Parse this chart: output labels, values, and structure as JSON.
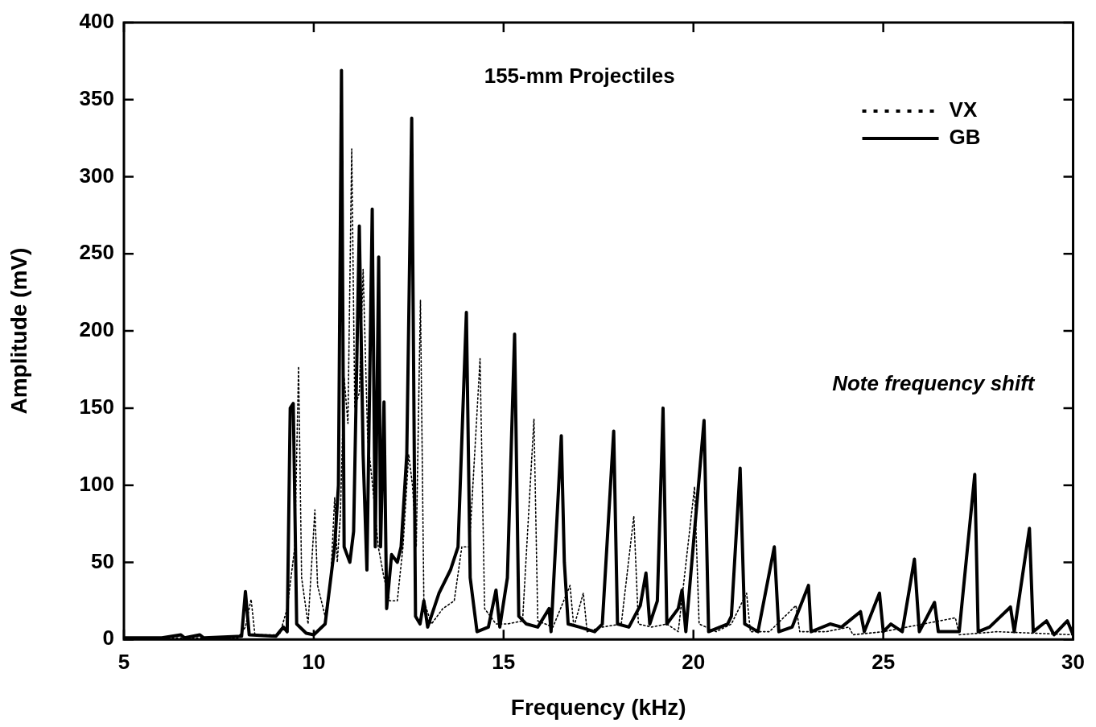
{
  "chart_data": {
    "type": "line",
    "title": "155-mm Projectiles",
    "xlabel": "Frequency (kHz)",
    "ylabel": "Amplitude (mV)",
    "annotations": [
      "Note frequency shift"
    ],
    "xlim": [
      5,
      30
    ],
    "xticks": [
      5,
      10,
      15,
      20,
      25,
      30
    ],
    "ylim": [
      0,
      400
    ],
    "yticks": [
      0,
      50,
      100,
      150,
      200,
      250,
      300,
      350,
      400
    ],
    "legend": "top right",
    "marker": "none",
    "series": [
      {
        "name": "VX",
        "color": "#000000",
        "line_style": "dotted",
        "x": [
          5,
          8.0,
          8.2,
          8.35,
          8.45,
          9.1,
          9.3,
          9.5,
          9.6,
          9.68,
          9.85,
          10.03,
          10.1,
          10.3,
          10.45,
          10.55,
          10.62,
          10.7,
          10.8,
          10.9,
          11.0,
          11.08,
          11.2,
          11.3,
          11.42,
          11.55,
          11.7,
          11.85,
          12.0,
          12.2,
          12.35,
          12.5,
          12.6,
          12.7,
          12.81,
          12.9,
          13.1,
          13.4,
          13.7,
          13.9,
          14.1,
          14.38,
          14.5,
          14.8,
          15.1,
          15.5,
          15.8,
          15.9,
          16.3,
          16.75,
          16.85,
          17.1,
          17.2,
          17.6,
          18.1,
          18.43,
          18.55,
          18.9,
          19.3,
          19.6,
          20.03,
          20.15,
          20.6,
          21.0,
          21.4,
          21.5,
          22.0,
          22.7,
          22.8,
          23.5,
          24.1,
          24.2,
          25.0,
          26.9,
          27.0,
          28.0,
          30
        ],
        "values": [
          1,
          1,
          8,
          26,
          3,
          3,
          20,
          60,
          177,
          40,
          10,
          84,
          35,
          15,
          40,
          92,
          50,
          80,
          170,
          140,
          318,
          150,
          160,
          240,
          130,
          100,
          60,
          40,
          25,
          25,
          60,
          120,
          100,
          60,
          220,
          25,
          10,
          20,
          25,
          60,
          60,
          182,
          20,
          10,
          10,
          12,
          143,
          12,
          8,
          35,
          8,
          30,
          5,
          8,
          10,
          80,
          10,
          8,
          10,
          5,
          99,
          10,
          5,
          10,
          30,
          5,
          5,
          22,
          5,
          5,
          8,
          3,
          5,
          14,
          3,
          5,
          3
        ]
      },
      {
        "name": "GB",
        "color": "#000000",
        "line_style": "solid",
        "x": [
          5,
          6,
          6.5,
          6.6,
          7,
          7.1,
          8.1,
          8.2,
          8.3,
          9.0,
          9.2,
          9.3,
          9.38,
          9.46,
          9.55,
          9.8,
          10.0,
          10.3,
          10.55,
          10.65,
          10.73,
          10.8,
          10.95,
          11.05,
          11.2,
          11.3,
          11.4,
          11.54,
          11.62,
          11.71,
          11.76,
          11.85,
          11.92,
          12.05,
          12.2,
          12.3,
          12.45,
          12.58,
          12.68,
          12.8,
          12.9,
          13.0,
          13.3,
          13.6,
          13.8,
          14.02,
          14.12,
          14.3,
          14.6,
          14.8,
          14.9,
          15.1,
          15.29,
          15.4,
          15.6,
          15.9,
          16.2,
          16.25,
          16.52,
          16.6,
          16.7,
          17.0,
          17.4,
          17.6,
          17.9,
          18.0,
          18.3,
          18.6,
          18.75,
          18.85,
          19.05,
          19.2,
          19.3,
          19.6,
          19.7,
          19.8,
          20.28,
          20.4,
          20.9,
          21.0,
          21.23,
          21.35,
          21.7,
          22.13,
          22.25,
          22.6,
          23.03,
          23.1,
          23.6,
          23.9,
          24.4,
          24.5,
          24.9,
          25.0,
          25.2,
          25.5,
          25.82,
          25.95,
          26.35,
          26.45,
          27.0,
          27.41,
          27.5,
          27.8,
          28.35,
          28.45,
          28.85,
          28.95,
          29.3,
          29.5,
          29.85,
          30
        ],
        "values": [
          1,
          1,
          3,
          1,
          3,
          1,
          2,
          31,
          3,
          2,
          8,
          5,
          150,
          153,
          10,
          4,
          3,
          10,
          60,
          100,
          369,
          60,
          50,
          70,
          268,
          120,
          45,
          279,
          60,
          248,
          60,
          154,
          20,
          55,
          50,
          60,
          120,
          338,
          15,
          10,
          25,
          8,
          30,
          45,
          60,
          212,
          40,
          5,
          8,
          32,
          8,
          40,
          198,
          15,
          10,
          8,
          20,
          5,
          132,
          50,
          10,
          8,
          5,
          10,
          135,
          10,
          8,
          22,
          43,
          10,
          25,
          150,
          10,
          20,
          32,
          5,
          142,
          5,
          10,
          15,
          111,
          10,
          5,
          60,
          5,
          8,
          35,
          5,
          10,
          8,
          18,
          5,
          30,
          5,
          10,
          5,
          52,
          5,
          24,
          5,
          5,
          107,
          5,
          8,
          21,
          5,
          72,
          5,
          12,
          3,
          12,
          3
        ]
      }
    ]
  }
}
